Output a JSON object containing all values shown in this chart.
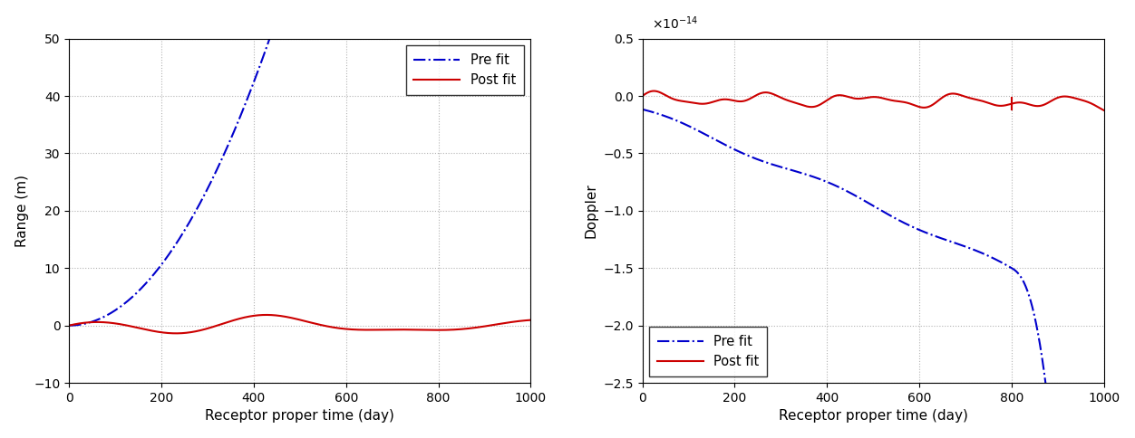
{
  "left": {
    "xlabel": "Receptor proper time (day)",
    "ylabel": "Range (m)",
    "xlim": [
      0,
      1000
    ],
    "ylim": [
      -10,
      50
    ],
    "yticks": [
      -10,
      0,
      10,
      20,
      30,
      40,
      50
    ],
    "xticks": [
      0,
      200,
      400,
      600,
      800,
      1000
    ],
    "legend_labels": [
      "Pre fit",
      "Post fit"
    ],
    "prefit_color": "#0000CC",
    "postfit_color": "#CC0000"
  },
  "right": {
    "xlabel": "Receptor proper time (day)",
    "ylabel": "Doppler",
    "xlim": [
      0,
      1000
    ],
    "ylim": [
      -2.5,
      0.5
    ],
    "yticks": [
      -2.5,
      -2.0,
      -1.5,
      -1.0,
      -0.5,
      0.0,
      0.5
    ],
    "xticks": [
      0,
      200,
      400,
      600,
      800,
      1000
    ],
    "scale_label": "$\\times10^{-14}$",
    "legend_labels": [
      "Pre fit",
      "Post fit"
    ],
    "prefit_color": "#0000CC",
    "postfit_color": "#CC0000"
  },
  "background_color": "#ffffff",
  "grid_color": "#aaaaaa",
  "grid_style": ":"
}
